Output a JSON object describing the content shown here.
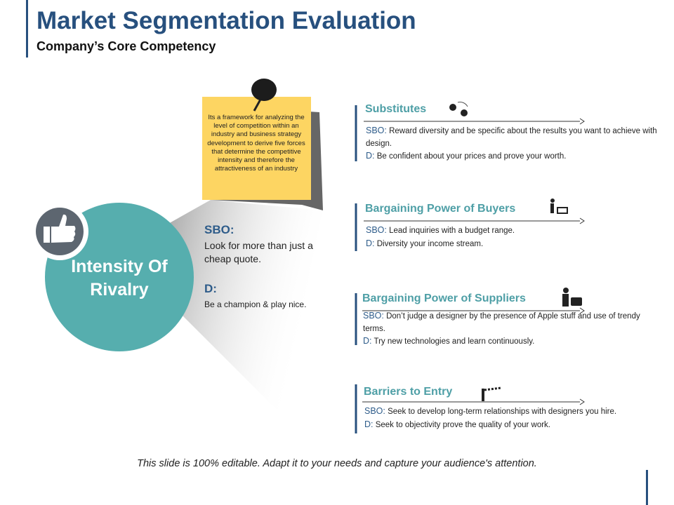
{
  "header": {
    "title": "Market Segmentation Evaluation",
    "subtitle": "Company’s Core Competency"
  },
  "note": "Its a framework for analyzing the level of competition within an industry and business strategy development to derive five forces that determine the competitive intensity and therefore the attractiveness of an industry",
  "circle": {
    "label": "Intensity Of Rivalry"
  },
  "center": {
    "sbo_label": "SBO:",
    "sbo_text": "Look for  more than just  a cheap quote.",
    "d_label": "D:",
    "d_text": "Be a champion & play nice."
  },
  "forces": [
    {
      "title": "Substitutes",
      "sbo_label": "SBO:",
      "sbo": "Reward diversity and be specific about the results you want to achieve with design.",
      "d_label": "D:",
      "d": "Be confident about your prices and prove your worth."
    },
    {
      "title": "Bargaining Power of Buyers",
      "sbo_label": "SBO:",
      "sbo": "Lead inquiries with a budget range.",
      "d_label": "D:",
      "d": "Diversity your income stream."
    },
    {
      "title": "Bargaining Power of Suppliers",
      "sbo_label": "SBO:",
      "sbo": "Don’t judge a designer by the presence of Apple stuff and use of trendy terms.",
      "d_label": "D:",
      "d": "Try new technologies and learn continuously."
    },
    {
      "title": "Barriers to Entry",
      "sbo_label": "SBO:",
      "sbo": "Seek to develop long-term relationships with designers you hire.",
      "d_label": "D:",
      "d": "Seek to objectivity prove the quality of your work."
    }
  ],
  "footer": "This slide is 100% editable. Adapt it to your needs and capture your audience's attention."
}
